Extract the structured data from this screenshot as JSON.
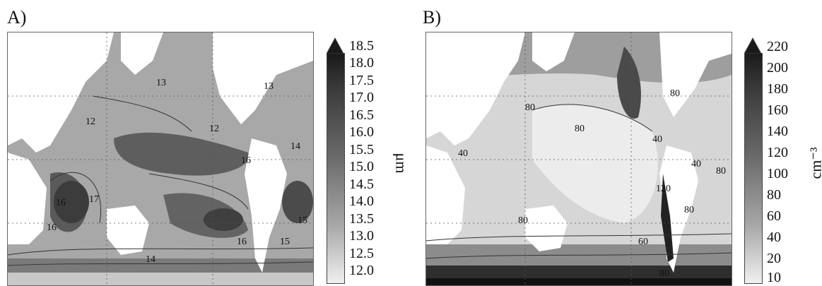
{
  "panels": [
    {
      "label": "A)",
      "unit": "μm",
      "colorbar_ticks": [
        "18.5",
        "18.0",
        "17.5",
        "17.0",
        "16.5",
        "16.0",
        "15.5",
        "15.0",
        "14.5",
        "14.0",
        "13.5",
        "13.0",
        "12.5",
        "12.0"
      ],
      "contour_labels": [
        "13",
        "12",
        "12",
        "13",
        "14",
        "16",
        "16",
        "17",
        "16",
        "15",
        "15",
        "14",
        "16"
      ]
    },
    {
      "label": "B)",
      "unit": "cm⁻³",
      "colorbar_ticks": [
        "220",
        "200",
        "180",
        "160",
        "140",
        "120",
        "100",
        "80",
        "60",
        "40",
        "20",
        "10"
      ],
      "contour_labels": [
        "80",
        "80",
        "40",
        "80",
        "40",
        "80",
        "80",
        "80",
        "40",
        "60",
        "120",
        "80"
      ]
    }
  ]
}
